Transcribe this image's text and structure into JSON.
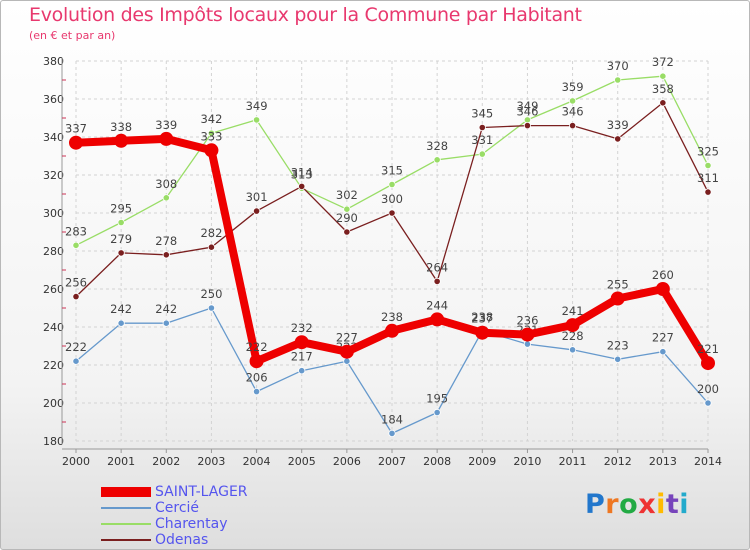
{
  "title": "Evolution des Impôts locaux pour la Commune par Habitant",
  "subtitle": "(en € et par an)",
  "logo": "Proxiti",
  "chart_data": {
    "type": "line",
    "x": [
      "2000",
      "2001",
      "2002",
      "2003",
      "2004",
      "2005",
      "2006",
      "2007",
      "2008",
      "2009",
      "2010",
      "2011",
      "2012",
      "2013",
      "2014"
    ],
    "ylim": [
      180,
      380
    ],
    "yticks": [
      180,
      200,
      220,
      240,
      260,
      280,
      300,
      320,
      340,
      360,
      380
    ],
    "grid": true,
    "legend_position": "bottom-left",
    "series": [
      {
        "name": "SAINT-LAGER",
        "color": "#ee0000",
        "label_color": "#444444",
        "values": [
          337,
          338,
          339,
          333,
          222,
          232,
          227,
          238,
          244,
          237,
          236,
          241,
          255,
          260,
          221
        ]
      },
      {
        "name": "Cercié",
        "color": "#6699cc",
        "label_color": "#444444",
        "values": [
          222,
          242,
          242,
          250,
          206,
          217,
          222,
          184,
          195,
          238,
          231,
          228,
          223,
          227,
          200
        ]
      },
      {
        "name": "Charentay",
        "color": "#99dd66",
        "label_color": "#444444",
        "values": [
          283,
          295,
          308,
          342,
          349,
          313,
          302,
          315,
          328,
          331,
          349,
          359,
          370,
          372,
          325
        ]
      },
      {
        "name": "Odenas",
        "color": "#7a1f1f",
        "label_color": "#444444",
        "values": [
          256,
          279,
          278,
          282,
          301,
          314,
          290,
          300,
          264,
          345,
          346,
          346,
          339,
          358,
          311
        ]
      }
    ]
  }
}
